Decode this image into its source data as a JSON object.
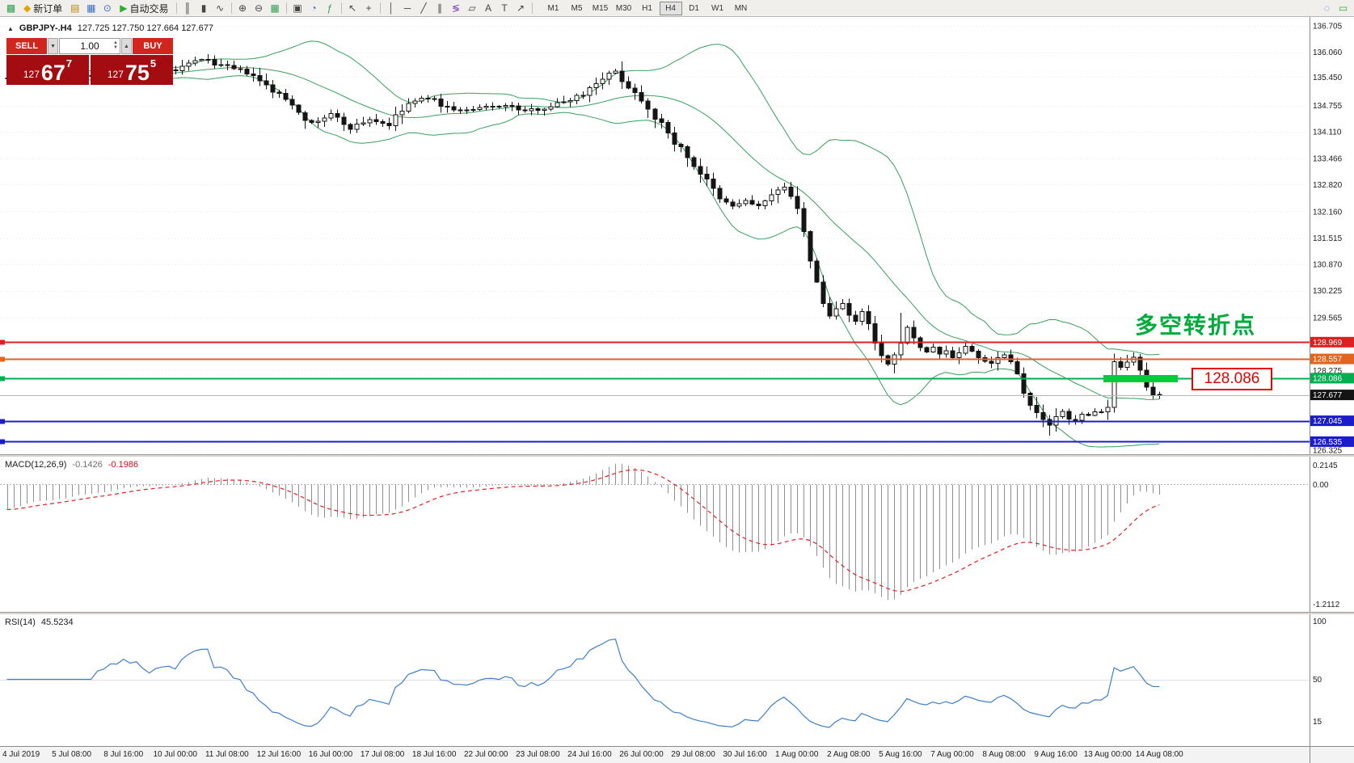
{
  "toolbar": {
    "items": [
      {
        "name": "new-chart-icon",
        "glyph": "▩",
        "color": "#2f9e4e"
      },
      {
        "name": "new-order-button",
        "glyph": "◆",
        "color": "#e0a500",
        "label": "新订单"
      },
      {
        "name": "chart-profiles-icon",
        "glyph": "▤",
        "color": "#b8860b"
      },
      {
        "name": "market-watch-icon",
        "glyph": "▦",
        "color": "#3a6ec2"
      },
      {
        "name": "data-window-icon",
        "glyph": "⊙",
        "color": "#3a6ec2"
      },
      {
        "name": "autotrading-button",
        "glyph": "▶",
        "color": "#2eae2e",
        "label": "自动交易"
      },
      {
        "sep": true
      },
      {
        "name": "bar-chart-mode-icon",
        "glyph": "║",
        "color": "#444444"
      },
      {
        "name": "candlestick-mode-icon",
        "glyph": "▮",
        "color": "#444444"
      },
      {
        "name": "line-chart-mode-icon",
        "glyph": "∿",
        "color": "#444444"
      },
      {
        "sep": true
      },
      {
        "name": "zoom-in-icon",
        "glyph": "⊕",
        "color": "#444444"
      },
      {
        "name": "zoom-out-icon",
        "glyph": "⊖",
        "color": "#444444"
      },
      {
        "name": "tile-windows-icon",
        "glyph": "▦",
        "color": "#2f9e4e"
      },
      {
        "sep": true
      },
      {
        "name": "arrange-windows-icon",
        "glyph": "▣",
        "color": "#444444"
      },
      {
        "name": "period-clock-icon",
        "glyph": "◔",
        "color": "#3a6ec2"
      },
      {
        "name": "indicators-icon",
        "glyph": "ƒ",
        "color": "#2f9e4e"
      },
      {
        "sep": true
      },
      {
        "name": "cursor-icon",
        "glyph": "↖",
        "color": "#444444"
      },
      {
        "name": "crosshair-icon",
        "glyph": "+",
        "color": "#444444"
      },
      {
        "sep": true
      },
      {
        "name": "vertical-line-icon",
        "glyph": "│",
        "color": "#444444"
      },
      {
        "name": "horizontal-line-icon",
        "glyph": "─",
        "color": "#444444"
      },
      {
        "name": "trendline-icon",
        "glyph": "╱",
        "color": "#444444"
      },
      {
        "name": "channel-icon",
        "glyph": "∥",
        "color": "#444444"
      },
      {
        "name": "fibonacci-icon",
        "glyph": "≶",
        "color": "#7b3fb8"
      },
      {
        "name": "shapes-icon",
        "glyph": "▱",
        "color": "#444444"
      },
      {
        "name": "text-icon",
        "glyph": "A",
        "color": "#444444"
      },
      {
        "name": "text-label-icon",
        "glyph": "T",
        "color": "#444444"
      },
      {
        "name": "arrow-tool-icon",
        "glyph": "↗",
        "color": "#444444"
      },
      {
        "sep": true
      }
    ],
    "timeframes": [
      "M1",
      "M5",
      "M15",
      "M30",
      "H1",
      "H4",
      "D1",
      "W1",
      "MN"
    ],
    "active_timeframe": "H4",
    "right_items": [
      {
        "name": "search-icon",
        "glyph": "◌",
        "color": "#3a6ec2"
      },
      {
        "name": "chat-icon",
        "glyph": "▭",
        "color": "#2eae2e"
      }
    ]
  },
  "quote_header": {
    "marker": "▲",
    "symbol": "GBPJPY-.H4",
    "ohlc": "127.725 127.750 127.664 127.677"
  },
  "trade_panel": {
    "sell_label": "SELL",
    "buy_label": "BUY",
    "volume": "1.00",
    "down_arrow": "▼",
    "up_arrow": "▲",
    "spin_up": "▲",
    "spin_down": "▼",
    "sell_price": {
      "prefix": "127",
      "big": "67",
      "sup": "7"
    },
    "buy_price": {
      "prefix": "127",
      "big": "75",
      "sup": "5"
    }
  },
  "annotations": {
    "turning_point": "多空转折点",
    "price_label": "128.086"
  },
  "indicators": {
    "macd_label": "MACD(12,26,9)",
    "macd_value_main": "-0.1426",
    "macd_value_signal": "-0.1986",
    "rsi_label": "RSI(14)",
    "rsi_value": "45.5234"
  },
  "chart_data": {
    "type": "candlestick",
    "symbol": "GBPJPY",
    "timeframe": "H4",
    "bars": 179,
    "price_axis": {
      "max": 136.705,
      "min": 126.325,
      "labels": [
        "136.705",
        "136.060",
        "135.450",
        "134.755",
        "134.110",
        "133.466",
        "132.820",
        "132.160",
        "131.515",
        "130.870",
        "130.225",
        "129.565",
        "128.275",
        "126.325"
      ]
    },
    "close_anchors": [
      [
        0,
        135.45
      ],
      [
        3,
        135.62
      ],
      [
        6,
        135.4
      ],
      [
        10,
        135.55
      ],
      [
        14,
        135.48
      ],
      [
        18,
        135.66
      ],
      [
        22,
        135.55
      ],
      [
        26,
        135.62
      ],
      [
        30,
        135.9
      ],
      [
        33,
        135.74
      ],
      [
        37,
        135.56
      ],
      [
        41,
        135.12
      ],
      [
        44,
        134.8
      ],
      [
        47,
        134.3
      ],
      [
        50,
        134.55
      ],
      [
        53,
        134.2
      ],
      [
        56,
        134.42
      ],
      [
        59,
        134.28
      ],
      [
        62,
        134.8
      ],
      [
        65,
        134.95
      ],
      [
        68,
        134.7
      ],
      [
        71,
        134.62
      ],
      [
        74,
        134.72
      ],
      [
        77,
        134.76
      ],
      [
        80,
        134.62
      ],
      [
        83,
        134.7
      ],
      [
        86,
        134.85
      ],
      [
        89,
        135.05
      ],
      [
        92,
        135.45
      ],
      [
        94,
        135.58
      ],
      [
        96,
        135.22
      ],
      [
        98,
        134.92
      ],
      [
        100,
        134.5
      ],
      [
        102,
        134.05
      ],
      [
        104,
        133.7
      ],
      [
        106,
        133.3
      ],
      [
        108,
        132.9
      ],
      [
        110,
        132.45
      ],
      [
        112,
        132.3
      ],
      [
        114,
        132.42
      ],
      [
        116,
        132.3
      ],
      [
        118,
        132.52
      ],
      [
        120,
        132.8
      ],
      [
        121,
        132.58
      ],
      [
        122,
        132.18
      ],
      [
        123,
        131.6
      ],
      [
        124,
        131.0
      ],
      [
        125,
        130.4
      ],
      [
        126,
        129.92
      ],
      [
        127,
        129.6
      ],
      [
        128,
        129.78
      ],
      [
        129,
        129.95
      ],
      [
        130,
        129.62
      ],
      [
        131,
        129.45
      ],
      [
        132,
        129.7
      ],
      [
        133,
        129.4
      ],
      [
        134,
        128.92
      ],
      [
        135,
        128.58
      ],
      [
        136,
        128.42
      ],
      [
        137,
        128.58
      ],
      [
        138,
        129.02
      ],
      [
        139,
        129.3
      ],
      [
        140,
        129.1
      ],
      [
        141,
        128.86
      ],
      [
        142,
        128.7
      ],
      [
        143,
        128.86
      ],
      [
        144,
        128.66
      ],
      [
        145,
        128.76
      ],
      [
        146,
        128.6
      ],
      [
        147,
        128.72
      ],
      [
        148,
        128.86
      ],
      [
        150,
        128.6
      ],
      [
        152,
        128.46
      ],
      [
        154,
        128.7
      ],
      [
        155,
        128.5
      ],
      [
        156,
        128.2
      ],
      [
        157,
        127.8
      ],
      [
        158,
        127.45
      ],
      [
        159,
        127.2
      ],
      [
        160,
        127.05
      ],
      [
        161,
        126.95
      ],
      [
        162,
        127.1
      ],
      [
        163,
        127.26
      ],
      [
        164,
        127.05
      ],
      [
        165,
        127.1
      ],
      [
        166,
        127.22
      ],
      [
        167,
        127.15
      ],
      [
        168,
        127.26
      ],
      [
        169,
        127.3
      ],
      [
        170,
        127.35
      ],
      [
        171,
        128.45
      ],
      [
        172,
        128.32
      ],
      [
        173,
        128.42
      ],
      [
        174,
        128.56
      ],
      [
        175,
        128.3
      ],
      [
        176,
        127.8
      ],
      [
        177,
        127.66
      ],
      [
        178,
        127.677
      ]
    ],
    "wick_events": [
      {
        "bar": 138,
        "add_high": 0.55
      },
      {
        "bar": 92,
        "add_high": 0.12
      },
      {
        "bar": 123,
        "add_high": 0.1
      },
      {
        "bar": 161,
        "add_low": 0.15
      }
    ],
    "indicator_settings": {
      "bollinger": {
        "period": 20,
        "deviation": 2
      },
      "macd": {
        "fast": 12,
        "slow": 26,
        "signal": 9
      },
      "rsi": {
        "period": 14
      }
    },
    "hlines": [
      {
        "value": 128.969,
        "label": "128.969",
        "color": "#e02020",
        "tag_bg": "#e02020"
      },
      {
        "value": 128.557,
        "label": "128.557",
        "color": "#e2641e",
        "tag_bg": "#e2641e"
      },
      {
        "value": 128.086,
        "label": "128.086",
        "color": "#00b050",
        "tag_bg": "#00b050",
        "segment_color": "#00cc3c"
      },
      {
        "value": 127.045,
        "label": "127.045",
        "color": "#1c1ccd",
        "tag_bg": "#1c1ccd"
      },
      {
        "value": 126.535,
        "label": "126.535",
        "color": "#1c1ccd",
        "tag_bg": "#1c1ccd"
      }
    ],
    "current_price": {
      "value": 127.677,
      "label": "127.677",
      "tag_bg": "#141414"
    },
    "macd_axis": [
      "0.2145",
      "0.00",
      "-1.2112"
    ],
    "rsi_axis": [
      "100",
      "50",
      "15"
    ],
    "time_labels": [
      "4 Jul 2019",
      "5 Jul 08:00",
      "8 Jul 16:00",
      "10 Jul 00:00",
      "11 Jul 08:00",
      "12 Jul 16:00",
      "16 Jul 00:00",
      "17 Jul 08:00",
      "18 Jul 16:00",
      "22 Jul 00:00",
      "23 Jul 08:00",
      "24 Jul 16:00",
      "26 Jul 00:00",
      "29 Jul 08:00",
      "30 Jul 16:00",
      "1 Aug 00:00",
      "2 Aug 08:00",
      "5 Aug 16:00",
      "7 Aug 00:00",
      "8 Aug 08:00",
      "9 Aug 16:00",
      "13 Aug 00:00",
      "14 Aug 08:00"
    ]
  }
}
